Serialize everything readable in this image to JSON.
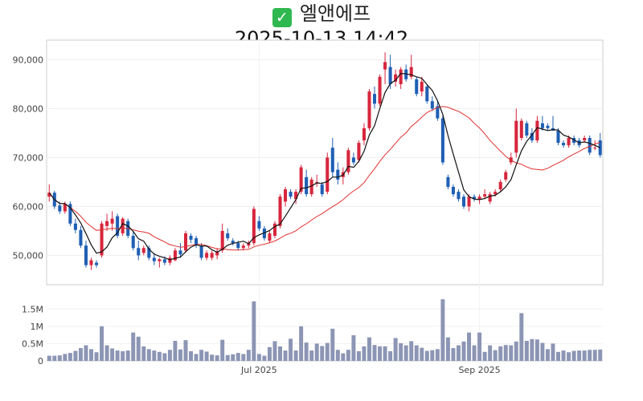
{
  "header": {
    "title": "엘앤에프",
    "timestamp": "2025-10-13 14:42"
  },
  "chart_data": [
    {
      "type": "candlestick",
      "ylim": [
        44000,
        94000
      ],
      "yticks": [
        50000,
        60000,
        70000,
        80000,
        90000
      ],
      "ytick_labels": [
        "50,000",
        "60,000",
        "70,000",
        "80,000",
        "90,000"
      ],
      "grid": true,
      "colors": {
        "up": "#d7263d",
        "down": "#1f5fb4",
        "ma_short": "#111111",
        "ma_long": "#e03030"
      },
      "ohlc": [
        [
          62000,
          64500,
          61000,
          62800
        ],
        [
          62800,
          63200,
          59500,
          60000
        ],
        [
          60200,
          61000,
          58500,
          59000
        ],
        [
          59000,
          61000,
          58500,
          60500
        ],
        [
          60500,
          61000,
          56000,
          56500
        ],
        [
          56500,
          57500,
          54500,
          55200
        ],
        [
          55200,
          56000,
          51500,
          52000
        ],
        [
          52000,
          53000,
          47500,
          48000
        ],
        [
          48000,
          49500,
          47000,
          49000
        ],
        [
          48500,
          49000,
          47500,
          48000
        ],
        [
          50000,
          57000,
          49500,
          56500
        ],
        [
          56000,
          58500,
          55000,
          57000
        ],
        [
          56500,
          59000,
          55000,
          57500
        ],
        [
          58000,
          58500,
          53500,
          54000
        ],
        [
          54500,
          57800,
          54000,
          57500
        ],
        [
          57000,
          57500,
          53500,
          54000
        ],
        [
          54000,
          55000,
          51000,
          51500
        ],
        [
          51500,
          53000,
          49000,
          50000
        ],
        [
          50500,
          52000,
          50000,
          51500
        ],
        [
          51500,
          52000,
          49000,
          49500
        ],
        [
          49500,
          50500,
          48000,
          48800
        ],
        [
          48800,
          49500,
          47500,
          49200
        ],
        [
          49200,
          49800,
          48000,
          48500
        ],
        [
          48500,
          50000,
          48000,
          49500
        ],
        [
          49000,
          51500,
          48800,
          51000
        ],
        [
          51000,
          52500,
          49500,
          50200
        ],
        [
          51000,
          55000,
          50500,
          54500
        ],
        [
          54000,
          54500,
          52500,
          53200
        ],
        [
          53500,
          54000,
          51500,
          52000
        ],
        [
          52000,
          52500,
          49000,
          49500
        ],
        [
          49500,
          51000,
          49000,
          50500
        ],
        [
          49500,
          51000,
          49000,
          50500
        ],
        [
          50000,
          51500,
          49200,
          50800
        ],
        [
          51000,
          56500,
          50500,
          55000
        ],
        [
          54500,
          55500,
          53000,
          53500
        ],
        [
          53000,
          53500,
          52000,
          52500
        ],
        [
          52500,
          53000,
          51000,
          51500
        ],
        [
          51500,
          52500,
          51000,
          52000
        ],
        [
          52000,
          53000,
          51500,
          52500
        ],
        [
          52500,
          60000,
          52000,
          59500
        ],
        [
          57000,
          58000,
          55000,
          55500
        ],
        [
          55500,
          56000,
          53000,
          53500
        ],
        [
          53000,
          55000,
          52500,
          54500
        ],
        [
          54000,
          57000,
          53500,
          56500
        ],
        [
          56000,
          62500,
          55500,
          62000
        ],
        [
          61000,
          64000,
          60000,
          63500
        ],
        [
          63000,
          63500,
          61500,
          62000
        ],
        [
          61500,
          63500,
          60500,
          63000
        ],
        [
          63000,
          68500,
          62500,
          68000
        ],
        [
          66000,
          67500,
          62000,
          62500
        ],
        [
          62500,
          66000,
          62000,
          65500
        ],
        [
          65000,
          66500,
          64000,
          65000
        ],
        [
          64500,
          65000,
          62000,
          62500
        ],
        [
          63000,
          71000,
          62500,
          70000
        ],
        [
          72000,
          74000,
          66000,
          67000
        ],
        [
          67500,
          69000,
          64500,
          65500
        ],
        [
          66000,
          68000,
          64500,
          67000
        ],
        [
          67000,
          72000,
          66500,
          71500
        ],
        [
          70000,
          71000,
          68500,
          69000
        ],
        [
          69500,
          73500,
          69000,
          73000
        ],
        [
          73500,
          77000,
          72500,
          76000
        ],
        [
          76000,
          84000,
          75500,
          83500
        ],
        [
          83000,
          84500,
          80000,
          81000
        ],
        [
          81000,
          87000,
          80500,
          86500
        ],
        [
          88000,
          91500,
          85000,
          89500
        ],
        [
          88500,
          91000,
          84000,
          85000
        ],
        [
          85500,
          88000,
          84500,
          87000
        ],
        [
          85000,
          88500,
          84000,
          88000
        ],
        [
          88000,
          89000,
          85500,
          86000
        ],
        [
          86500,
          91000,
          86000,
          88500
        ],
        [
          86000,
          86500,
          82500,
          83000
        ],
        [
          83500,
          86500,
          82500,
          85500
        ],
        [
          84500,
          85000,
          81000,
          81500
        ],
        [
          81500,
          82500,
          79500,
          80000
        ],
        [
          80500,
          81500,
          77500,
          78000
        ],
        [
          78000,
          78500,
          68500,
          69000
        ],
        [
          66000,
          66500,
          63500,
          64000
        ],
        [
          64000,
          64500,
          62000,
          62500
        ],
        [
          63000,
          63500,
          61000,
          61500
        ],
        [
          62000,
          62500,
          59500,
          60000
        ],
        [
          60000,
          62500,
          59000,
          62000
        ],
        [
          62000,
          62500,
          61000,
          61500
        ],
        [
          61500,
          62500,
          60500,
          62000
        ],
        [
          62000,
          63500,
          61500,
          62500
        ],
        [
          61000,
          63000,
          60500,
          62500
        ],
        [
          62500,
          63500,
          62000,
          63000
        ],
        [
          63500,
          65500,
          63000,
          65000
        ],
        [
          65500,
          67500,
          65000,
          67000
        ],
        [
          69000,
          71000,
          68500,
          70000
        ],
        [
          71000,
          80000,
          70000,
          77500
        ],
        [
          74000,
          78000,
          73500,
          77500
        ],
        [
          77000,
          77500,
          74000,
          74500
        ],
        [
          75000,
          76000,
          73000,
          73500
        ],
        [
          73500,
          78500,
          73000,
          77500
        ],
        [
          77000,
          78500,
          75500,
          76000
        ],
        [
          76500,
          77000,
          75500,
          76000
        ],
        [
          76000,
          78500,
          75500,
          75500
        ],
        [
          75500,
          76000,
          72500,
          73000
        ],
        [
          73000,
          73500,
          72000,
          72500
        ],
        [
          72500,
          74500,
          72000,
          74000
        ],
        [
          74000,
          74500,
          72500,
          73000
        ],
        [
          73500,
          74000,
          72000,
          72500
        ],
        [
          73500,
          74500,
          73000,
          74000
        ],
        [
          74000,
          74500,
          70500,
          71000
        ],
        [
          72000,
          73500,
          71500,
          72000
        ],
        [
          73500,
          75000,
          70000,
          70500
        ]
      ],
      "volume": [
        150000,
        150000,
        160000,
        200000,
        230000,
        290000,
        370000,
        450000,
        340000,
        250000,
        1000000,
        450000,
        360000,
        300000,
        280000,
        300000,
        820000,
        700000,
        420000,
        340000,
        300000,
        260000,
        220000,
        320000,
        580000,
        330000,
        600000,
        280000,
        200000,
        320000,
        270000,
        180000,
        160000,
        610000,
        170000,
        190000,
        230000,
        200000,
        320000,
        1720000,
        200000,
        150000,
        400000,
        570000,
        420000,
        300000,
        640000,
        300000,
        1000000,
        530000,
        300000,
        500000,
        430000,
        520000,
        930000,
        320000,
        220000,
        320000,
        740000,
        280000,
        420000,
        680000,
        460000,
        420000,
        420000,
        280000,
        660000,
        510000,
        450000,
        570000,
        450000,
        380000,
        290000,
        310000,
        340000,
        1780000,
        680000,
        370000,
        450000,
        560000,
        820000,
        450000,
        820000,
        260000,
        450000,
        310000,
        420000,
        460000,
        450000,
        560000,
        1380000,
        580000,
        630000,
        620000,
        520000,
        340000,
        500000,
        260000,
        300000,
        250000,
        290000,
        300000,
        300000,
        320000,
        320000,
        330000
      ],
      "ma_short_period": 5,
      "ma_long_period": 20,
      "xlabels": [
        {
          "index": 40,
          "label": "Jul 2025"
        },
        {
          "index": 82,
          "label": "Sep 2025"
        }
      ]
    },
    {
      "type": "bar",
      "name": "volume-panel",
      "ylim": [
        0,
        1900000
      ],
      "yticks": [
        0,
        500000,
        1000000,
        1500000
      ],
      "ytick_labels": [
        "0",
        "0.5M",
        "1M",
        "1.5M"
      ]
    }
  ]
}
